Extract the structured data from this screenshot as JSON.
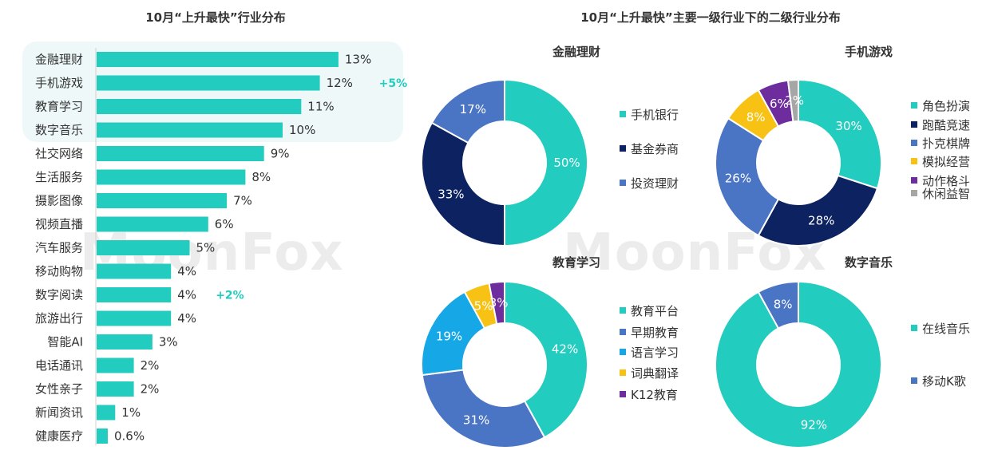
{
  "left_title": "10月“上升最快”行业分布",
  "right_title": "10月“上升最快”主要一级行业下的二级行业分布",
  "watermark": "MoonFox",
  "colors": {
    "teal": "#22ccbe",
    "navy": "#0d2260",
    "blue": "#4a74c4",
    "sky": "#16a7e6",
    "yellow": "#f7c213",
    "purple": "#6e2d9c",
    "gray": "#a6a6a6",
    "highlight_bg": "#eef8f8",
    "growth_text": "#22ccbe"
  },
  "chart_data": [
    {
      "type": "bar",
      "orientation": "horizontal",
      "title": "10月“上升最快”行业分布",
      "categories": [
        "金融理财",
        "手机游戏",
        "教育学习",
        "数字音乐",
        "社交网络",
        "生活服务",
        "摄影图像",
        "视频直播",
        "汽车服务",
        "移动购物",
        "数字阅读",
        "旅游出行",
        "智能AI",
        "电话通讯",
        "女性亲子",
        "新闻资讯",
        "健康医疗"
      ],
      "values": [
        13,
        12,
        11,
        10,
        9,
        8,
        7,
        6,
        5,
        4,
        4,
        4,
        3,
        2,
        2,
        1,
        0.6
      ],
      "labels": [
        "13%",
        "12%",
        "11%",
        "10%",
        "9%",
        "8%",
        "7%",
        "6%",
        "5%",
        "4%",
        "4%",
        "4%",
        "3%",
        "2%",
        "2%",
        "1%",
        "0.6%"
      ],
      "annotations": [
        {
          "category": "手机游戏",
          "text": "+5%"
        },
        {
          "category": "数字阅读",
          "text": "+2%"
        }
      ],
      "highlighted_categories": [
        "金融理财",
        "手机游戏",
        "教育学习",
        "数字音乐"
      ]
    },
    {
      "type": "pie",
      "style": "donut",
      "title": "金融理财",
      "slices": [
        {
          "name": "手机银行",
          "value": 50,
          "label": "50%",
          "color": "#22ccbe"
        },
        {
          "name": "基金券商",
          "value": 33,
          "label": "33%",
          "color": "#0d2260"
        },
        {
          "name": "投资理财",
          "value": 17,
          "label": "17%",
          "color": "#4a74c4"
        }
      ]
    },
    {
      "type": "pie",
      "style": "donut",
      "title": "手机游戏",
      "slices": [
        {
          "name": "角色扮演",
          "value": 30,
          "label": "30%",
          "color": "#22ccbe"
        },
        {
          "name": "跑酷竞速",
          "value": 28,
          "label": "28%",
          "color": "#0d2260"
        },
        {
          "name": "扑克棋牌",
          "value": 26,
          "label": "26%",
          "color": "#4a74c4"
        },
        {
          "name": "模拟经营",
          "value": 8,
          "label": "8%",
          "color": "#f7c213"
        },
        {
          "name": "动作格斗",
          "value": 6,
          "label": "6%",
          "color": "#6e2d9c"
        },
        {
          "name": "休闲益智",
          "value": 2,
          "label": "2%",
          "color": "#a6a6a6"
        }
      ]
    },
    {
      "type": "pie",
      "style": "donut",
      "title": "教育学习",
      "slices": [
        {
          "name": "教育平台",
          "value": 42,
          "label": "42%",
          "color": "#22ccbe"
        },
        {
          "name": "早期教育",
          "value": 31,
          "label": "31%",
          "color": "#4a74c4"
        },
        {
          "name": "语言学习",
          "value": 19,
          "label": "19%",
          "color": "#16a7e6"
        },
        {
          "name": "词典翻译",
          "value": 5,
          "label": "5%",
          "color": "#f7c213"
        },
        {
          "name": "K12教育",
          "value": 3,
          "label": "3%",
          "color": "#6e2d9c"
        }
      ]
    },
    {
      "type": "pie",
      "style": "donut",
      "title": "数字音乐",
      "slices": [
        {
          "name": "在线音乐",
          "value": 92,
          "label": "92%",
          "color": "#22ccbe"
        },
        {
          "name": "移动K歌",
          "value": 8,
          "label": "8%",
          "color": "#4a74c4"
        }
      ]
    }
  ]
}
